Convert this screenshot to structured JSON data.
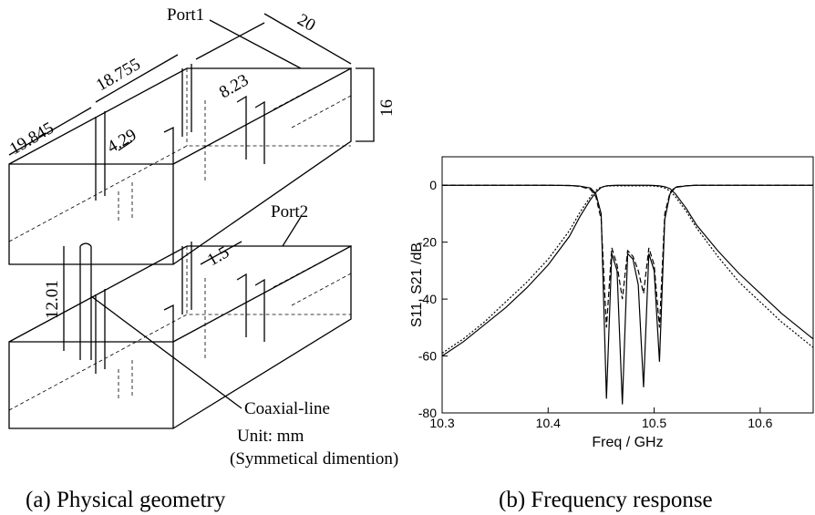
{
  "diagram": {
    "labels": {
      "port1": "Port1",
      "dim_20": "20",
      "dim_18_755": "18.755",
      "dim_8_23": "8.23",
      "dim_19_845": "19.845",
      "dim_4_29": "4.29",
      "dim_16": "16",
      "port2": "Port2",
      "dim_1_5": "1.5",
      "dim_12_01": "12.01",
      "coax": "Coaxial-line",
      "unit": "Unit: mm",
      "note": "(Symmetical dimention)"
    },
    "caption": "(a) Physical geometry"
  },
  "chart_caption": "(b) Frequency response",
  "chart_data": {
    "type": "line",
    "x_label": "Freq / GHz",
    "y_label": "S11, S21 /dB",
    "x": [
      10.3,
      10.32,
      10.34,
      10.36,
      10.38,
      10.4,
      10.42,
      10.43,
      10.44,
      10.445,
      10.45,
      10.455,
      10.46,
      10.465,
      10.47,
      10.475,
      10.48,
      10.485,
      10.49,
      10.495,
      10.5,
      10.505,
      10.51,
      10.515,
      10.52,
      10.53,
      10.54,
      10.56,
      10.58,
      10.6,
      10.62,
      10.65
    ],
    "series": [
      {
        "color": "#000000",
        "style": "solid",
        "values": [
          -60,
          -55,
          -49,
          -43,
          -36,
          -28,
          -18,
          -11,
          -5,
          -2.5,
          -0.8,
          -0.2,
          -0.1,
          0,
          0,
          0,
          0,
          0,
          0,
          0,
          -0.1,
          -0.2,
          -0.5,
          -1.2,
          -3,
          -8,
          -14,
          -23,
          -31,
          -38,
          -45,
          -54
        ]
      },
      {
        "color": "#000000",
        "style": "dotted",
        "values": [
          -59,
          -54,
          -48,
          -41,
          -34,
          -26,
          -16,
          -9.5,
          -4,
          -1.8,
          -0.6,
          -0.3,
          -0.2,
          -0.2,
          -0.2,
          -0.2,
          -0.2,
          -0.2,
          -0.2,
          -0.2,
          -0.3,
          -0.5,
          -1,
          -2,
          -4,
          -9,
          -15,
          -25,
          -34,
          -41,
          -48,
          -57
        ]
      },
      {
        "color": "#000000",
        "style": "solid",
        "values": [
          0,
          0,
          0,
          0,
          0,
          0,
          -0.1,
          -0.3,
          -1,
          -3,
          -10,
          -75,
          -24,
          -30,
          -77,
          -24,
          -26,
          -35,
          -71,
          -24,
          -30,
          -62,
          -12,
          -3,
          -0.8,
          -0.2,
          0,
          0,
          0,
          0,
          0,
          0
        ]
      },
      {
        "color": "#000000",
        "style": "dashed",
        "values": [
          0,
          0,
          0,
          0,
          0,
          0,
          -0.1,
          -0.4,
          -1.5,
          -4,
          -12,
          -50,
          -22,
          -28,
          -40,
          -23,
          -25,
          -30,
          -38,
          -22,
          -28,
          -50,
          -10,
          -2.5,
          -0.6,
          -0.2,
          0,
          0,
          0,
          0,
          0,
          0
        ]
      }
    ],
    "xlim": [
      10.3,
      10.65
    ],
    "xticks": [
      10.3,
      10.4,
      10.5,
      10.6
    ],
    "ylim": [
      -80,
      10
    ],
    "yticks": [
      -80,
      -60,
      -40,
      -20,
      0
    ]
  }
}
